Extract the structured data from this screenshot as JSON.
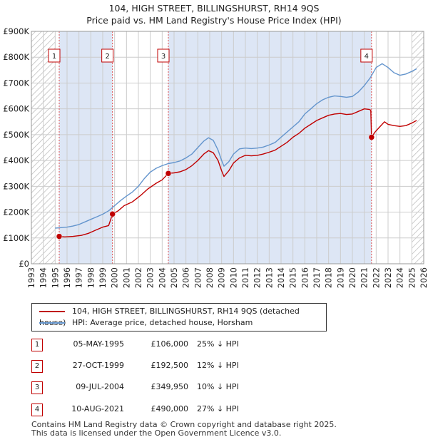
{
  "header": {
    "title_line1": "104, HIGH STREET, BILLINGSHURST, RH14 9QS",
    "title_line2": "Price paid vs. HM Land Registry's House Price Index (HPI)"
  },
  "legend": {
    "property_label": "104, HIGH STREET, BILLINGSHURST, RH14 9QS (detached house)",
    "hpi_label": "HPI: Average price, detached house, Horsham"
  },
  "transactions": [
    {
      "num": "1",
      "date": "05-MAY-1995",
      "price": "£106,000",
      "hpi": "25% ↓ HPI"
    },
    {
      "num": "2",
      "date": "27-OCT-1999",
      "price": "£192,500",
      "hpi": "12% ↓ HPI"
    },
    {
      "num": "3",
      "date": "09-JUL-2004",
      "price": "£349,950",
      "hpi": "10% ↓ HPI"
    },
    {
      "num": "4",
      "date": "10-AUG-2021",
      "price": "£490,000",
      "hpi": "27% ↓ HPI"
    }
  ],
  "footer": {
    "line1": "Contains HM Land Registry data © Crown copyright and database right 2025.",
    "line2": "This data is licensed under the Open Government Licence v3.0."
  },
  "colors": {
    "property": "#c00000",
    "hpi": "#6495cd",
    "shade": "#dde6f5",
    "grid": "#cccccc"
  },
  "chart_data": {
    "type": "line",
    "title": "104, HIGH STREET, BILLINGSHURST, RH14 9QS — Price paid vs. HM Land Registry's House Price Index (HPI)",
    "xlim": [
      1993,
      2026
    ],
    "ylim": [
      0,
      900000
    ],
    "x_ticks": [
      1993,
      1994,
      1995,
      1996,
      1997,
      1998,
      1999,
      2000,
      2001,
      2002,
      2003,
      2004,
      2005,
      2006,
      2007,
      2008,
      2009,
      2010,
      2011,
      2012,
      2013,
      2014,
      2015,
      2016,
      2017,
      2018,
      2019,
      2020,
      2021,
      2022,
      2023,
      2024,
      2025,
      2026
    ],
    "y_ticks": [
      {
        "value": 0,
        "label": "£0"
      },
      {
        "value": 100000,
        "label": "£100K"
      },
      {
        "value": 200000,
        "label": "£200K"
      },
      {
        "value": 300000,
        "label": "£300K"
      },
      {
        "value": 400000,
        "label": "£400K"
      },
      {
        "value": 500000,
        "label": "£500K"
      },
      {
        "value": 600000,
        "label": "£600K"
      },
      {
        "value": 700000,
        "label": "£700K"
      },
      {
        "value": 800000,
        "label": "£800K"
      },
      {
        "value": 900000,
        "label": "£900K"
      }
    ],
    "hatched_ranges": [
      [
        1993,
        1995.0
      ],
      [
        2025.0,
        2026
      ]
    ],
    "shaded_ranges": [
      [
        1995.34,
        1999.82
      ],
      [
        2004.52,
        2021.61
      ]
    ],
    "markers": [
      {
        "num": "1",
        "x": 1995.34,
        "y": 106000
      },
      {
        "num": "2",
        "x": 1999.82,
        "y": 192500
      },
      {
        "num": "3",
        "x": 2004.52,
        "y": 349950
      },
      {
        "num": "4",
        "x": 2021.61,
        "y": 490000
      }
    ],
    "series": [
      {
        "name": "104, HIGH STREET, BILLINGSHURST, RH14 9QS (detached house)",
        "color": "#c00000",
        "points": [
          [
            1995.34,
            106000
          ],
          [
            1995.8,
            104000
          ],
          [
            1996.5,
            106000
          ],
          [
            1997.2,
            110000
          ],
          [
            1997.8,
            118000
          ],
          [
            1998.4,
            130000
          ],
          [
            1999.0,
            142000
          ],
          [
            1999.5,
            148000
          ],
          [
            1999.82,
            192500
          ],
          [
            2000.3,
            205000
          ],
          [
            2000.8,
            225000
          ],
          [
            2001.5,
            240000
          ],
          [
            2002.2,
            265000
          ],
          [
            2002.8,
            290000
          ],
          [
            2003.5,
            312000
          ],
          [
            2004.0,
            325000
          ],
          [
            2004.52,
            349950
          ],
          [
            2005.0,
            352000
          ],
          [
            2005.5,
            356000
          ],
          [
            2006.0,
            365000
          ],
          [
            2006.5,
            380000
          ],
          [
            2007.0,
            400000
          ],
          [
            2007.5,
            425000
          ],
          [
            2007.9,
            438000
          ],
          [
            2008.3,
            430000
          ],
          [
            2008.7,
            400000
          ],
          [
            2009.0,
            360000
          ],
          [
            2009.2,
            338000
          ],
          [
            2009.6,
            360000
          ],
          [
            2010.0,
            390000
          ],
          [
            2010.5,
            410000
          ],
          [
            2011.0,
            420000
          ],
          [
            2011.5,
            418000
          ],
          [
            2012.0,
            420000
          ],
          [
            2012.5,
            425000
          ],
          [
            2013.0,
            432000
          ],
          [
            2013.5,
            440000
          ],
          [
            2014.0,
            455000
          ],
          [
            2014.5,
            470000
          ],
          [
            2015.0,
            490000
          ],
          [
            2015.5,
            505000
          ],
          [
            2016.0,
            525000
          ],
          [
            2016.5,
            540000
          ],
          [
            2017.0,
            555000
          ],
          [
            2017.5,
            565000
          ],
          [
            2018.0,
            575000
          ],
          [
            2018.5,
            580000
          ],
          [
            2019.0,
            582000
          ],
          [
            2019.5,
            578000
          ],
          [
            2020.0,
            580000
          ],
          [
            2020.5,
            590000
          ],
          [
            2021.0,
            600000
          ],
          [
            2021.4,
            598000
          ],
          [
            2021.55,
            595000
          ],
          [
            2021.61,
            490000
          ],
          [
            2021.9,
            510000
          ],
          [
            2022.3,
            530000
          ],
          [
            2022.7,
            550000
          ],
          [
            2023.0,
            540000
          ],
          [
            2023.5,
            535000
          ],
          [
            2024.0,
            532000
          ],
          [
            2024.5,
            535000
          ],
          [
            2025.0,
            545000
          ],
          [
            2025.4,
            555000
          ]
        ]
      },
      {
        "name": "HPI: Average price, detached house, Horsham",
        "color": "#6495cd",
        "points": [
          [
            1995.0,
            138000
          ],
          [
            1995.5,
            140000
          ],
          [
            1996.0,
            142000
          ],
          [
            1996.5,
            146000
          ],
          [
            1997.0,
            152000
          ],
          [
            1997.5,
            162000
          ],
          [
            1998.0,
            172000
          ],
          [
            1998.5,
            182000
          ],
          [
            1999.0,
            192000
          ],
          [
            1999.5,
            205000
          ],
          [
            2000.0,
            225000
          ],
          [
            2000.5,
            245000
          ],
          [
            2001.0,
            262000
          ],
          [
            2001.5,
            278000
          ],
          [
            2002.0,
            300000
          ],
          [
            2002.5,
            330000
          ],
          [
            2003.0,
            355000
          ],
          [
            2003.5,
            370000
          ],
          [
            2004.0,
            380000
          ],
          [
            2004.5,
            388000
          ],
          [
            2005.0,
            392000
          ],
          [
            2005.5,
            398000
          ],
          [
            2006.0,
            410000
          ],
          [
            2006.5,
            425000
          ],
          [
            2007.0,
            450000
          ],
          [
            2007.5,
            475000
          ],
          [
            2007.9,
            488000
          ],
          [
            2008.3,
            478000
          ],
          [
            2008.7,
            440000
          ],
          [
            2009.0,
            400000
          ],
          [
            2009.2,
            378000
          ],
          [
            2009.6,
            395000
          ],
          [
            2010.0,
            425000
          ],
          [
            2010.5,
            445000
          ],
          [
            2011.0,
            448000
          ],
          [
            2011.5,
            446000
          ],
          [
            2012.0,
            448000
          ],
          [
            2012.5,
            452000
          ],
          [
            2013.0,
            460000
          ],
          [
            2013.5,
            470000
          ],
          [
            2014.0,
            490000
          ],
          [
            2014.5,
            510000
          ],
          [
            2015.0,
            530000
          ],
          [
            2015.5,
            550000
          ],
          [
            2016.0,
            580000
          ],
          [
            2016.5,
            600000
          ],
          [
            2017.0,
            620000
          ],
          [
            2017.5,
            635000
          ],
          [
            2018.0,
            645000
          ],
          [
            2018.5,
            650000
          ],
          [
            2019.0,
            648000
          ],
          [
            2019.5,
            645000
          ],
          [
            2020.0,
            648000
          ],
          [
            2020.5,
            665000
          ],
          [
            2021.0,
            690000
          ],
          [
            2021.5,
            720000
          ],
          [
            2022.0,
            760000
          ],
          [
            2022.5,
            775000
          ],
          [
            2023.0,
            760000
          ],
          [
            2023.5,
            740000
          ],
          [
            2024.0,
            730000
          ],
          [
            2024.5,
            735000
          ],
          [
            2025.0,
            745000
          ],
          [
            2025.4,
            755000
          ]
        ]
      }
    ]
  }
}
